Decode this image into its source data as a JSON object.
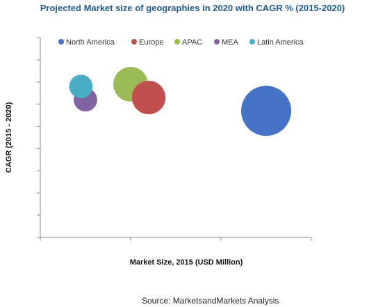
{
  "chart_data": {
    "type": "bubble",
    "title": "Projected Market size of geographies in 2020 with CAGR % (2015-2020)",
    "xlabel": "Market Size, 2015 (USD Million)",
    "ylabel": "CAGR (2015 - 2020)",
    "grid": false,
    "legend_position": "top",
    "series": [
      {
        "name": "North America",
        "x": 2.5,
        "y": 5.7,
        "size": 100,
        "color": "#4472c4"
      },
      {
        "name": "Europe",
        "x": 1.2,
        "y": 6.3,
        "size": 45,
        "color": "#c0504d"
      },
      {
        "name": "APAC",
        "x": 1.0,
        "y": 6.9,
        "size": 48,
        "color": "#9bbb59"
      },
      {
        "name": "MEA",
        "x": 0.5,
        "y": 6.2,
        "size": 22,
        "color": "#8064a2"
      },
      {
        "name": "Latin America",
        "x": 0.45,
        "y": 6.8,
        "size": 22,
        "color": "#4bacc6"
      }
    ],
    "xlim": [
      0,
      3
    ],
    "ylim": [
      0,
      9
    ],
    "x_tick_count": 3,
    "y_tick_count": 9
  },
  "source": "Source: MarketsandMarkets Analysis"
}
